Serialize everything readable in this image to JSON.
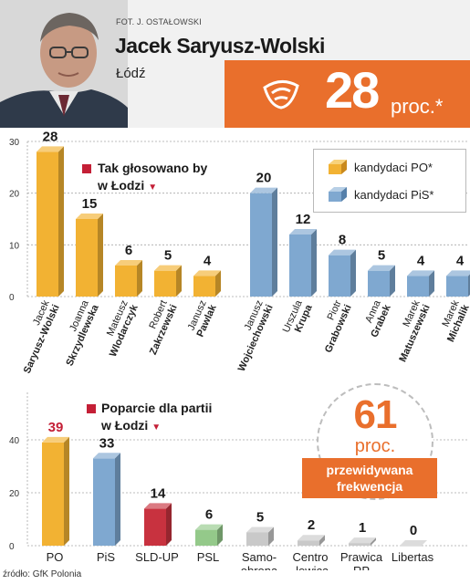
{
  "header": {
    "photo_credit": "FOT. J. OSTAŁOWSKI",
    "candidate": "Jacek Saryusz-Wolski",
    "city": "Łódź",
    "result_value": "28",
    "result_unit": "proc.*",
    "brand_color": "#e96f2c"
  },
  "legend": {
    "po_label": "kandydaci PO*",
    "pis_label": "kandydaci PiS*"
  },
  "titles": {
    "candidates": [
      "Tak głosowano by",
      "w Łodzi"
    ],
    "parties": [
      "Poparcie dla partii",
      "w Łodzi"
    ],
    "arrow": "▼"
  },
  "turnout": {
    "value": "61",
    "unit": "proc.",
    "label": [
      "przewidywana",
      "frekwencja"
    ]
  },
  "source": "źródło: GfK Polonia",
  "chart_data": [
    {
      "type": "bar",
      "title": "Tak głosowano by w Łodzi",
      "ylim": [
        0,
        30
      ],
      "yticks": [
        0,
        10,
        20,
        30
      ],
      "grid": true,
      "legend_position": "top-right",
      "categories": [
        {
          "first": "Jacek",
          "last": "Saryusz-Wolski",
          "party": "PO",
          "value": 28
        },
        {
          "first": "Joanna",
          "last": "Skrzydlewska",
          "party": "PO",
          "value": 15
        },
        {
          "first": "Mateusz",
          "last": "Wlodarczyk",
          "party": "PO",
          "value": 6
        },
        {
          "first": "Robert",
          "last": "Zakrzewski",
          "party": "PO",
          "value": 5
        },
        {
          "first": "Janusz",
          "last": "Pawlak",
          "party": "PO",
          "value": 4
        },
        {
          "first": "Janusz",
          "last": "Wojciechowski",
          "party": "PiS",
          "value": 20
        },
        {
          "first": "Urszula",
          "last": "Krupa",
          "party": "PiS",
          "value": 12
        },
        {
          "first": "Piotr",
          "last": "Grabowski",
          "party": "PiS",
          "value": 8
        },
        {
          "first": "Anna",
          "last": "Grabek",
          "party": "PiS",
          "value": 5
        },
        {
          "first": "Marek",
          "last": "Matuszewski",
          "party": "PiS",
          "value": 4
        },
        {
          "first": "Marek",
          "last": "Michalik",
          "party": "PiS",
          "value": 4
        }
      ],
      "colors": {
        "PO": "#f2b233",
        "PiS": "#7fa8d0"
      }
    },
    {
      "type": "bar",
      "title": "Poparcie dla partii w Łodzi",
      "ylim": [
        0,
        45
      ],
      "yticks": [
        0,
        20,
        40
      ],
      "grid": true,
      "categories": [
        {
          "label": [
            "PO"
          ],
          "value": 39,
          "color": "#f2b233",
          "value_color": "#c41f36"
        },
        {
          "label": [
            "PiS"
          ],
          "value": 33,
          "color": "#7fa8d0",
          "value_color": "#1a1a1a"
        },
        {
          "label": [
            "SLD-UP"
          ],
          "value": 14,
          "color": "#c8323f",
          "value_color": "#1a1a1a"
        },
        {
          "label": [
            "PSL"
          ],
          "value": 6,
          "color": "#94c98a",
          "value_color": "#1a1a1a"
        },
        {
          "label": [
            "Samo-",
            "obrona"
          ],
          "value": 5,
          "color": "#c9c9c9",
          "value_color": "#1a1a1a"
        },
        {
          "label": [
            "Centro",
            "-lewica"
          ],
          "value": 2,
          "color": "#c9c9c9",
          "value_color": "#1a1a1a"
        },
        {
          "label": [
            "Prawica",
            "RP"
          ],
          "value": 1,
          "color": "#c9c9c9",
          "value_color": "#1a1a1a"
        },
        {
          "label": [
            "Libertas"
          ],
          "value": 0,
          "color": "#c9c9c9",
          "value_color": "#1a1a1a"
        }
      ]
    }
  ]
}
